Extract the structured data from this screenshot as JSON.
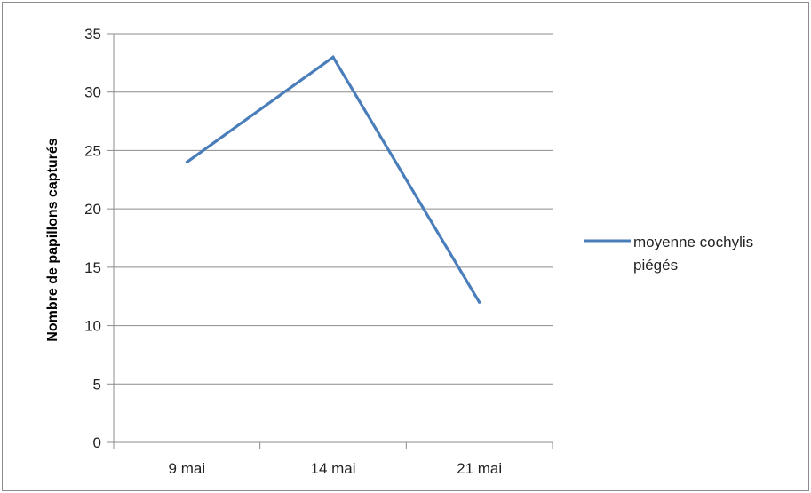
{
  "chart_data": {
    "type": "line",
    "title": "",
    "xlabel": "",
    "ylabel": "Nombre de papillons capturés",
    "categories": [
      "9 mai",
      "14 mai",
      "21 mai"
    ],
    "series": [
      {
        "name": "moyenne cochylis piégés",
        "values": [
          24,
          33,
          12
        ],
        "color": "#4a7ebb"
      }
    ],
    "ylim": [
      0,
      35
    ],
    "yticks": [
      0,
      5,
      10,
      15,
      20,
      25,
      30,
      35
    ],
    "grid": true,
    "legend_position": "right",
    "legend_lines": [
      "moyenne cochylis",
      "piégés"
    ]
  }
}
